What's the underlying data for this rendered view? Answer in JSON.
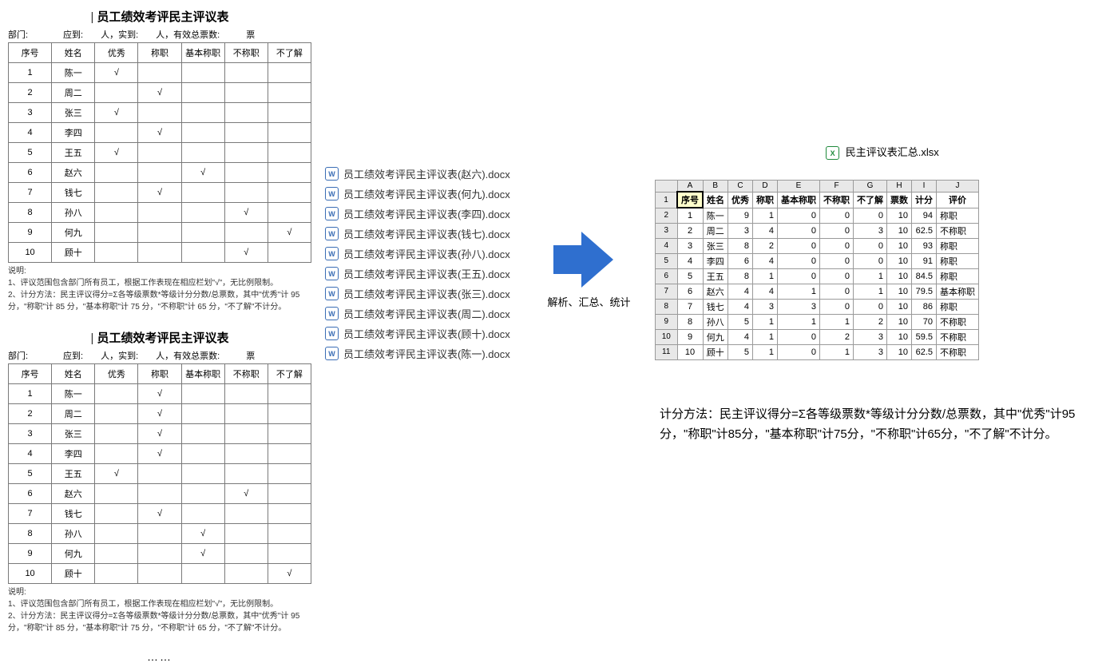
{
  "form": {
    "title": "员工绩效考评民主评议表",
    "header_fields": "部门:　　　　应到:　　人，实到:　　人，有效总票数:　　　票",
    "columns": [
      "序号",
      "姓名",
      "优秀",
      "称职",
      "基本称职",
      "不称职",
      "不了解"
    ],
    "notes_label": "说明:",
    "note1": "1、评议范围包含部门所有员工，根据工作表现在相应栏划\"√\"，无比例限制。",
    "note2": "2、计分方法：民主评议得分=Σ各等级票数*等级计分分数/总票数，其中\"优秀\"计 95 分，\"称职\"计 85 分，\"基本称职\"计 75 分，\"不称职\"计 65 分，\"不了解\"不计分。",
    "sheet1_rows": [
      {
        "n": "1",
        "name": "陈一",
        "marks": [
          "√",
          "",
          "",
          "",
          ""
        ]
      },
      {
        "n": "2",
        "name": "周二",
        "marks": [
          "",
          "√",
          "",
          "",
          ""
        ]
      },
      {
        "n": "3",
        "name": "张三",
        "marks": [
          "√",
          "",
          "",
          "",
          ""
        ]
      },
      {
        "n": "4",
        "name": "李四",
        "marks": [
          "",
          "√",
          "",
          "",
          ""
        ]
      },
      {
        "n": "5",
        "name": "王五",
        "marks": [
          "√",
          "",
          "",
          "",
          ""
        ]
      },
      {
        "n": "6",
        "name": "赵六",
        "marks": [
          "",
          "",
          "√",
          "",
          ""
        ]
      },
      {
        "n": "7",
        "name": "钱七",
        "marks": [
          "",
          "√",
          "",
          "",
          ""
        ]
      },
      {
        "n": "8",
        "name": "孙八",
        "marks": [
          "",
          "",
          "",
          "√",
          ""
        ]
      },
      {
        "n": "9",
        "name": "何九",
        "marks": [
          "",
          "",
          "",
          "",
          "√"
        ]
      },
      {
        "n": "10",
        "name": "顾十",
        "marks": [
          "",
          "",
          "",
          "√",
          ""
        ]
      }
    ],
    "sheet2_rows": [
      {
        "n": "1",
        "name": "陈一",
        "marks": [
          "",
          "√",
          "",
          "",
          ""
        ]
      },
      {
        "n": "2",
        "name": "周二",
        "marks": [
          "",
          "√",
          "",
          "",
          ""
        ]
      },
      {
        "n": "3",
        "name": "张三",
        "marks": [
          "",
          "√",
          "",
          "",
          ""
        ]
      },
      {
        "n": "4",
        "name": "李四",
        "marks": [
          "",
          "√",
          "",
          "",
          ""
        ]
      },
      {
        "n": "5",
        "name": "王五",
        "marks": [
          "√",
          "",
          "",
          "",
          ""
        ]
      },
      {
        "n": "6",
        "name": "赵六",
        "marks": [
          "",
          "",
          "",
          "√",
          ""
        ]
      },
      {
        "n": "7",
        "name": "钱七",
        "marks": [
          "",
          "√",
          "",
          "",
          ""
        ]
      },
      {
        "n": "8",
        "name": "孙八",
        "marks": [
          "",
          "",
          "√",
          "",
          ""
        ]
      },
      {
        "n": "9",
        "name": "何九",
        "marks": [
          "",
          "",
          "√",
          "",
          ""
        ]
      },
      {
        "n": "10",
        "name": "顾十",
        "marks": [
          "",
          "",
          "",
          "",
          "√"
        ]
      }
    ],
    "ellipsis": "……"
  },
  "files": {
    "list": [
      "员工绩效考评民主评议表(赵六).docx",
      "员工绩效考评民主评议表(何九).docx",
      "员工绩效考评民主评议表(李四).docx",
      "员工绩效考评民主评议表(钱七).docx",
      "员工绩效考评民主评议表(孙八).docx",
      "员工绩效考评民主评议表(王五).docx",
      "员工绩效考评民主评议表(张三).docx",
      "员工绩效考评民主评议表(周二).docx",
      "员工绩效考评民主评议表(顾十).docx",
      "员工绩效考评民主评议表(陈一).docx"
    ],
    "docx_glyph": "W",
    "xlsx_glyph": "X"
  },
  "arrow_label": "解析、汇总、统计",
  "output": {
    "filename": "民主评议表汇总.xlsx",
    "col_letters": [
      "",
      "A",
      "B",
      "C",
      "D",
      "E",
      "F",
      "G",
      "H",
      "I",
      "J"
    ],
    "row_numbers": [
      "1",
      "2",
      "3",
      "4",
      "5",
      "6",
      "7",
      "8",
      "9",
      "10",
      "11"
    ],
    "headers": [
      "序号",
      "姓名",
      "优秀",
      "称职",
      "基本称职",
      "不称职",
      "不了解",
      "票数",
      "计分",
      "评价"
    ],
    "rows": [
      [
        "1",
        "陈一",
        "9",
        "1",
        "0",
        "0",
        "0",
        "10",
        "94",
        "称职"
      ],
      [
        "2",
        "周二",
        "3",
        "4",
        "0",
        "0",
        "3",
        "10",
        "62.5",
        "不称职"
      ],
      [
        "3",
        "张三",
        "8",
        "2",
        "0",
        "0",
        "0",
        "10",
        "93",
        "称职"
      ],
      [
        "4",
        "李四",
        "6",
        "4",
        "0",
        "0",
        "0",
        "10",
        "91",
        "称职"
      ],
      [
        "5",
        "王五",
        "8",
        "1",
        "0",
        "0",
        "1",
        "10",
        "84.5",
        "称职"
      ],
      [
        "6",
        "赵六",
        "4",
        "4",
        "1",
        "0",
        "1",
        "10",
        "79.5",
        "基本称职"
      ],
      [
        "7",
        "钱七",
        "4",
        "3",
        "3",
        "0",
        "0",
        "10",
        "86",
        "称职"
      ],
      [
        "8",
        "孙八",
        "5",
        "1",
        "1",
        "1",
        "2",
        "10",
        "70",
        "不称职"
      ],
      [
        "9",
        "何九",
        "4",
        "1",
        "0",
        "2",
        "3",
        "10",
        "59.5",
        "不称职"
      ],
      [
        "10",
        "顾十",
        "5",
        "1",
        "0",
        "1",
        "3",
        "10",
        "62.5",
        "不称职"
      ]
    ]
  },
  "method_text": "计分方法：民主评议得分=Σ各等级票数*等级计分分数/总票数，其中\"优秀\"计95分，\"称职\"计85分，\"基本称职\"计75分，\"不称职\"计65分，\"不了解\"不计分。",
  "style": {
    "arrow_color": "#2f6fcf",
    "docx_color": "#3a6db5",
    "xlsx_color": "#1f8a3b",
    "excel_header_bg": "#e8e8e8",
    "table_border": "#7a7a7a"
  }
}
